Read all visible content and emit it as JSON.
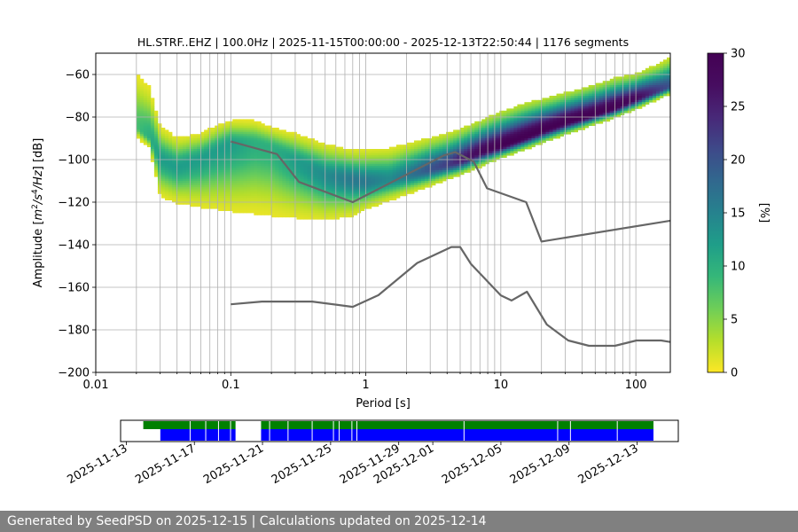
{
  "chart_data": [
    {
      "type": "heatmap",
      "title": "HL.STRF..EHZ | 100.0Hz | 2025-11-15T00:00:00 - 2025-12-13T22:50:44 | 1176 segments",
      "xlabel": "Period [s]",
      "ylabel_parts": [
        "Amplitude [",
        "m",
        "2",
        "/s",
        "4",
        "/Hz",
        "] [dB]"
      ],
      "x_scale": "log",
      "xlim": [
        0.01,
        180
      ],
      "ylim": [
        -200,
        -50
      ],
      "x_ticks": [
        0.01,
        0.1,
        1,
        10,
        100
      ],
      "x_tick_labels": [
        "0.01",
        "0.1",
        "1",
        "10",
        "100"
      ],
      "y_ticks": [
        -60,
        -80,
        -100,
        -120,
        -140,
        -160,
        -180,
        -200
      ],
      "y_tick_labels": [
        "−60",
        "−80",
        "−100",
        "−120",
        "−140",
        "−160",
        "−180",
        "−200"
      ],
      "grid": true,
      "colormap": "viridis_r",
      "colorbar": {
        "label": "[%]",
        "range": [
          0,
          30
        ],
        "ticks": [
          0,
          5,
          10,
          15,
          20,
          25,
          30
        ],
        "tick_labels": [
          "0",
          "5",
          "10",
          "15",
          "20",
          "25",
          "30"
        ]
      },
      "noise_models": {
        "nhnm": {
          "color": "#666666",
          "x": [
            0.1,
            0.22,
            0.32,
            0.8,
            3.8,
            4.6,
            6.3,
            7.9,
            15.4,
            20.0,
            180
          ],
          "y": [
            -91.5,
            -97.4,
            -110.5,
            -120.0,
            -98.0,
            -96.5,
            -101.0,
            -113.5,
            -120.0,
            -138.5,
            -128.7
          ]
        },
        "nlnm": {
          "color": "#666666",
          "x": [
            0.1,
            0.17,
            0.4,
            0.8,
            1.24,
            2.4,
            4.3,
            5.0,
            6.0,
            10.0,
            12.0,
            15.6,
            21.9,
            31.6,
            45.0,
            70.0,
            101.0,
            154.0,
            180
          ],
          "y": [
            -168.0,
            -166.7,
            -166.7,
            -169.2,
            -163.7,
            -148.6,
            -141.1,
            -141.1,
            -149.0,
            -163.8,
            -166.2,
            -162.1,
            -177.5,
            -185.0,
            -187.5,
            -187.5,
            -185.0,
            -185.0,
            -185.7
          ]
        }
      },
      "psd_distribution": {
        "x": [
          0.02,
          0.025,
          0.03,
          0.04,
          0.06,
          0.08,
          0.1,
          0.15,
          0.2,
          0.3,
          0.5,
          0.8,
          1.0,
          1.5,
          2.0,
          3.0,
          4.0,
          5.0,
          7.0,
          10.0,
          15.0,
          20.0,
          30.0,
          50.0,
          70.0,
          100.0,
          150.0,
          180.0
        ],
        "mode": [
          -85,
          -90,
          -100,
          -104,
          -100,
          -96,
          -93,
          -93,
          -95,
          -101,
          -108,
          -110,
          -111,
          -110,
          -108,
          -105,
          -103,
          -101,
          -97,
          -94,
          -90,
          -87,
          -83,
          -79,
          -76,
          -72,
          -68,
          -66
        ],
        "lower": [
          -90,
          -95,
          -118,
          -121,
          -123,
          -124,
          -125,
          -126,
          -127,
          -128,
          -129,
          -127,
          -124,
          -120,
          -117,
          -113,
          -110,
          -108,
          -104,
          -100,
          -96,
          -93,
          -89,
          -84,
          -81,
          -77,
          -72,
          -70
        ],
        "upper": [
          -60,
          -66,
          -85,
          -90,
          -88,
          -84,
          -82,
          -82,
          -85,
          -88,
          -93,
          -96,
          -96,
          -95,
          -93,
          -90,
          -88,
          -86,
          -82,
          -78,
          -74,
          -72,
          -69,
          -65,
          -62,
          -60,
          -55,
          -52
        ],
        "peak_percent": [
          8,
          10,
          12,
          12,
          12,
          12,
          12,
          10,
          10,
          12,
          14,
          16,
          16,
          14,
          16,
          20,
          22,
          25,
          28,
          30,
          30,
          30,
          30,
          30,
          30,
          28,
          22,
          20
        ]
      }
    },
    {
      "type": "timeline",
      "x_tick_labels": [
        "2025-11-13",
        "2025-11-17",
        "2025-11-21",
        "2025-11-25",
        "2025-11-29",
        "2025-12-01",
        "2025-12-05",
        "2025-12-09",
        "2025-12-13"
      ],
      "x_tick_dates": [
        "2025-11-13",
        "2025-11-17",
        "2025-11-21",
        "2025-11-25",
        "2025-11-29",
        "2025-12-01",
        "2025-12-05",
        "2025-12-09",
        "2025-12-13"
      ],
      "xlim": [
        "2025-11-12T16:00",
        "2025-12-15T10:00"
      ],
      "data_coverage": {
        "color": "#008000",
        "spans": [
          [
            "2025-11-14T00:00",
            "2025-11-19T10:00"
          ],
          [
            "2025-11-20T22:00",
            "2025-12-13T23:00"
          ]
        ]
      },
      "psd_coverage": {
        "color": "#0000ff",
        "spans": [
          [
            "2025-11-15T00:00",
            "2025-11-19T10:00"
          ],
          [
            "2025-11-20T22:00",
            "2025-12-13T23:00"
          ]
        ],
        "gaps": [
          "2025-11-16T18:00",
          "2025-11-17T16:00",
          "2025-11-18T10:00",
          "2025-11-19T03:00",
          "2025-11-21T10:00",
          "2025-11-22T12:00",
          "2025-11-23T22:00",
          "2025-11-25T04:00",
          "2025-11-25T12:00",
          "2025-11-26T06:00",
          "2025-11-26T13:00",
          "2025-12-02T20:00",
          "2025-12-08T08:00",
          "2025-12-09T02:00",
          "2025-12-11T20:00"
        ]
      }
    }
  ],
  "footer": {
    "text": "Generated by SeedPSD on 2025-12-15 | Calculations updated on 2025-12-14"
  }
}
